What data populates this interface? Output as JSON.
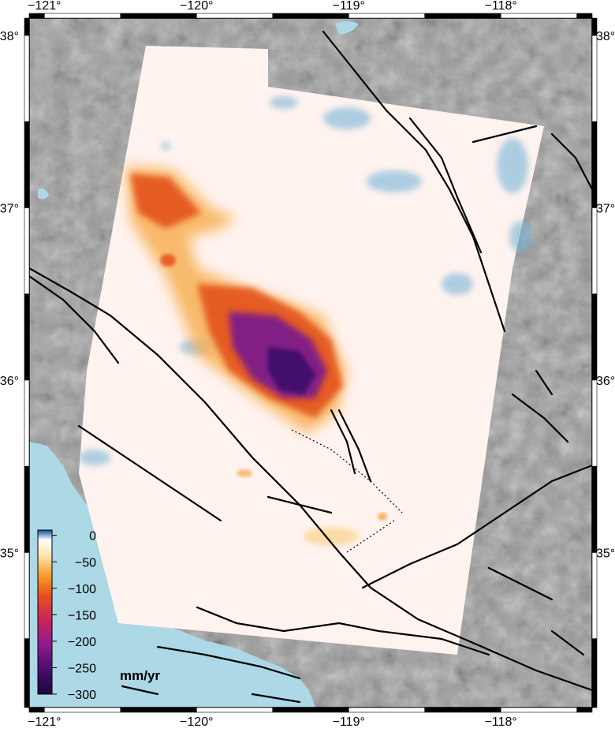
{
  "map": {
    "lon_range": [
      -121.1,
      -117.4
    ],
    "lat_range": [
      34.1,
      38.1
    ],
    "lon_ticks": [
      {
        "value": -121,
        "label": "−121°"
      },
      {
        "value": -120,
        "label": "−120°"
      },
      {
        "value": -119,
        "label": "−119°"
      },
      {
        "value": -118,
        "label": "−118°"
      }
    ],
    "lat_ticks": [
      {
        "value": 38,
        "label": "38°"
      },
      {
        "value": 37,
        "label": "37°"
      },
      {
        "value": 36,
        "label": "36°"
      },
      {
        "value": 35,
        "label": "35°"
      }
    ],
    "colors": {
      "ocean": "#add8e6",
      "terrain": "#a0a0a0",
      "uplift": "#6baed6",
      "subsidence_max": "#2d0a5c",
      "fault": "#000000"
    }
  },
  "colorbar": {
    "unit": "mm/yr",
    "range": [
      -300,
      10
    ],
    "ticks": [
      {
        "value": 0,
        "label": "0"
      },
      {
        "value": -50,
        "label": "−50"
      },
      {
        "value": -100,
        "label": "−100"
      },
      {
        "value": -150,
        "label": "−150"
      },
      {
        "value": -200,
        "label": "−200"
      },
      {
        "value": -250,
        "label": "−250"
      },
      {
        "value": -300,
        "label": "−300"
      }
    ]
  }
}
